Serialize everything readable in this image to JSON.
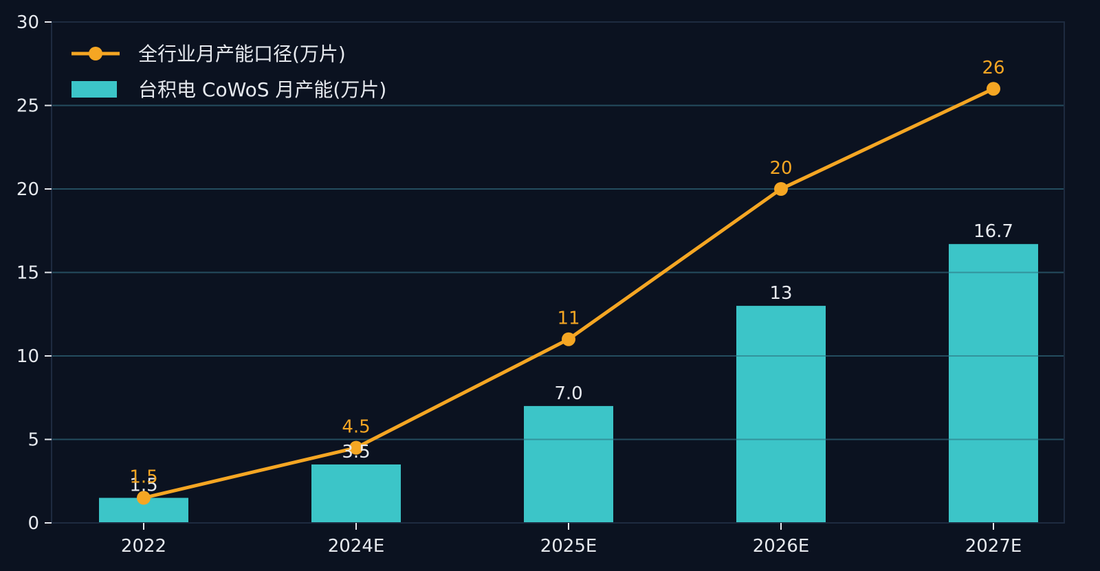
{
  "chart_data": {
    "type": "bar",
    "categories": [
      "2022",
      "2024E",
      "2025E",
      "2026E",
      "2027E"
    ],
    "series": [
      {
        "name": "台积电 CoWoS 月产能(万片)",
        "type": "bar",
        "values": [
          1.5,
          3.5,
          7.0,
          13,
          16.7
        ],
        "labels": [
          "1.5",
          "3.5",
          "7.0",
          "13",
          "16.7"
        ],
        "color": "#3cc5c8"
      },
      {
        "name": "全行业月产能口径(万片)",
        "type": "line",
        "values": [
          1.5,
          4.5,
          11,
          20,
          26
        ],
        "labels": [
          "1.5",
          "4.5",
          "11",
          "20",
          "26"
        ],
        "color": "#f5a623"
      }
    ],
    "ylim": [
      0,
      30
    ],
    "yticks": [
      "0",
      "5",
      "10",
      "15",
      "20",
      "25",
      "30"
    ],
    "grid": true,
    "legend": "top-left",
    "background": "#0b1220",
    "grid_color": "#1e2b40",
    "text_color": "#e6e9ee"
  }
}
